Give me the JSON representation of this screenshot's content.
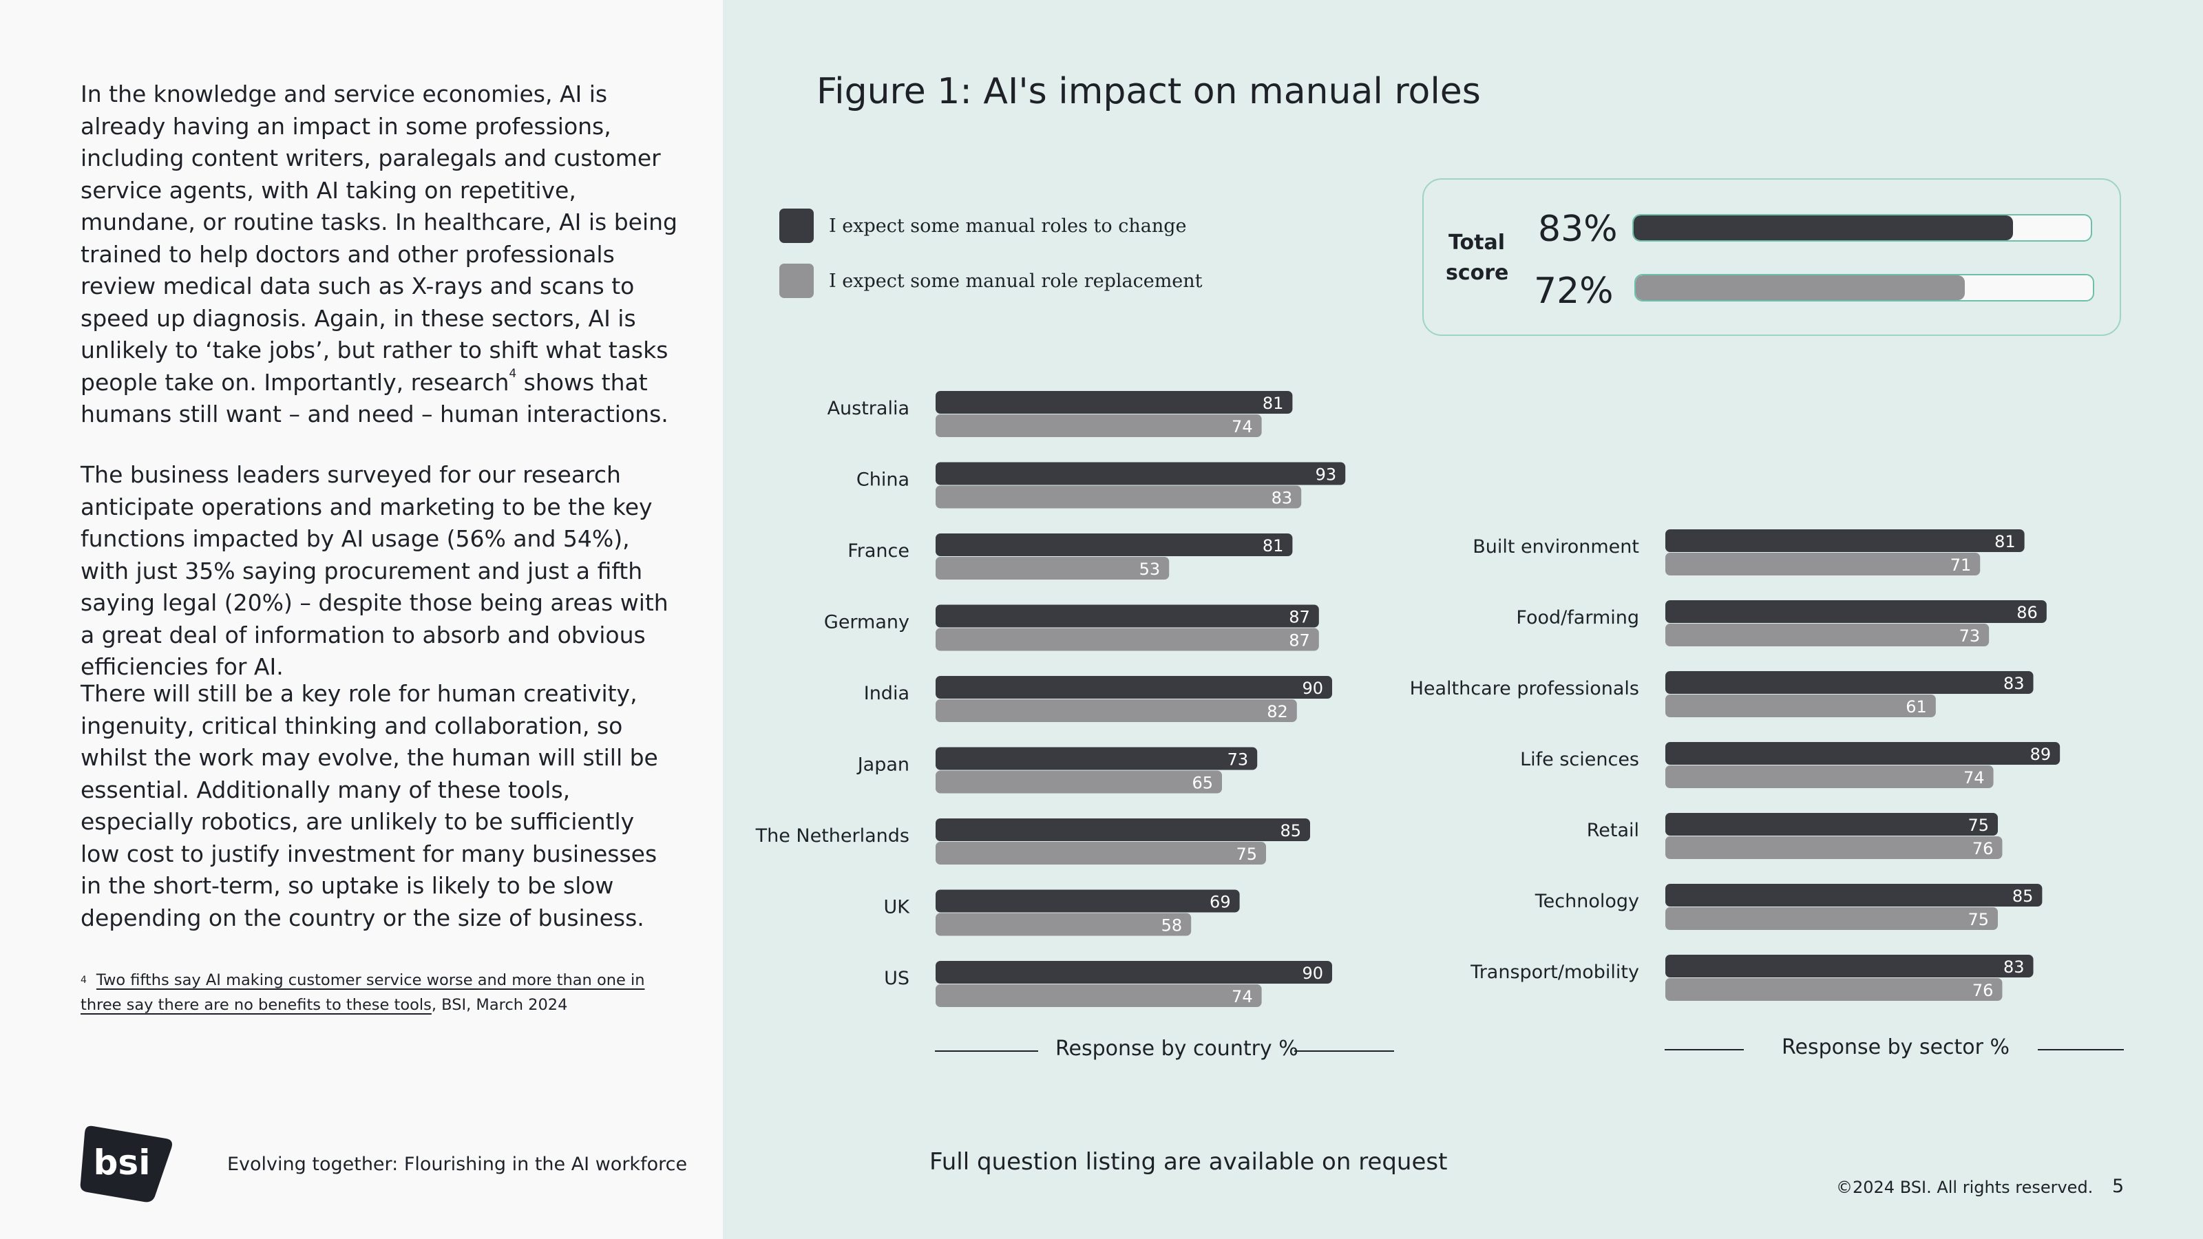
{
  "left": {
    "paragraphs": [
      {
        "text": "In the knowledge and service economies, AI is already having an impact in some professions, including content writers, paralegals and customer service agents, with AI taking on repetitive, mundane, or routine tasks. In healthcare, AI is being trained to help doctors and other professionals review medical data such as X-rays and scans to speed up diagnosis. Again, in these sectors, AI is unlikely to ‘take jobs’, but rather to shift what tasks people take on. Importantly, research",
        "sup": "4",
        "after": " shows that humans still want – and need – human interactions."
      },
      {
        "text": "The business leaders surveyed for our research anticipate operations and marketing to be the key functions impacted by AI usage (56% and 54%), with just 35% saying procurement and just a fifth saying legal (20%) – despite those being areas with a great deal of information to absorb and obvious efficiencies for AI."
      },
      {
        "text": "There will still be a key role for human creativity, ingenuity, critical thinking and collaboration, so whilst the work may evolve, the human will still be essential. Additionally many of these tools, especially robotics, are unlikely to be sufficiently low cost to justify investment for many businesses in the short-term, so uptake is likely to be slow depending on the country or the size of business."
      }
    ],
    "footnote": {
      "number": "4",
      "link_text": "Two fifths say AI making customer service worse and more than one in three say there are no benefits to these tools",
      "after": ", BSI, March 2024"
    },
    "logo_text": "bsi",
    "footer_title": "Evolving together: Flourishing in the AI workforce"
  },
  "right": {
    "figure_title": "Figure 1: AI's impact on manual roles",
    "legend": [
      {
        "label": "I expect some manual roles to change",
        "color": "#393b41"
      },
      {
        "label": "I expect some manual role replacement",
        "color": "#939396"
      }
    ],
    "total": {
      "label_line1": "Total",
      "label_line2": "score",
      "change_pct": "83%",
      "change_value": 83,
      "replacement_pct": "72%",
      "replacement_value": 72
    },
    "note": "Full question listing are available on request",
    "copyright": "©2024 BSI. All rights reserved.",
    "page_number": "5"
  },
  "chart_data": [
    {
      "type": "bar",
      "orientation": "horizontal",
      "title": "Response by country %",
      "categories": [
        "Australia",
        "China",
        "France",
        "Germany",
        "India",
        "Japan",
        "The Netherlands",
        "UK",
        "US"
      ],
      "series": [
        {
          "name": "I expect some manual roles to change",
          "color": "#393b41",
          "values": [
            81,
            93,
            81,
            87,
            90,
            73,
            85,
            69,
            90
          ]
        },
        {
          "name": "I expect some manual role replacement",
          "color": "#939396",
          "values": [
            74,
            83,
            53,
            87,
            82,
            65,
            75,
            58,
            74
          ]
        }
      ],
      "xlim": [
        0,
        100
      ],
      "grid": false
    },
    {
      "type": "bar",
      "orientation": "horizontal",
      "title": "Response by sector %",
      "categories": [
        "Built environment",
        "Food/farming",
        "Healthcare professionals",
        "Life sciences",
        "Retail",
        "Technology",
        "Transport/mobility"
      ],
      "series": [
        {
          "name": "I expect some manual roles to change",
          "color": "#393b41",
          "values": [
            81,
            86,
            83,
            89,
            75,
            85,
            83
          ]
        },
        {
          "name": "I expect some manual role replacement",
          "color": "#939396",
          "values": [
            71,
            73,
            61,
            74,
            76,
            75,
            76
          ]
        }
      ],
      "xlim": [
        0,
        100
      ],
      "grid": false
    }
  ]
}
